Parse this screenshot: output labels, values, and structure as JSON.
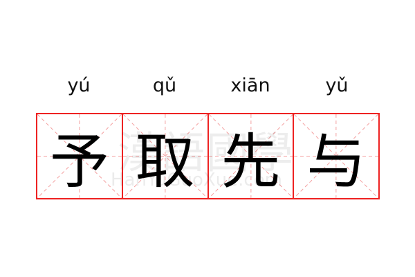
{
  "pinyin": [
    "yú",
    "qǔ",
    "xiān",
    "yǔ"
  ],
  "characters": [
    "予",
    "取",
    "先",
    "与"
  ],
  "watermark": {
    "chinese": "漢語國學",
    "latin": "HanYuGuoXue.com"
  },
  "colors": {
    "grid_border": "#ee2222",
    "guide_lines": "#f4a0a0"
  }
}
